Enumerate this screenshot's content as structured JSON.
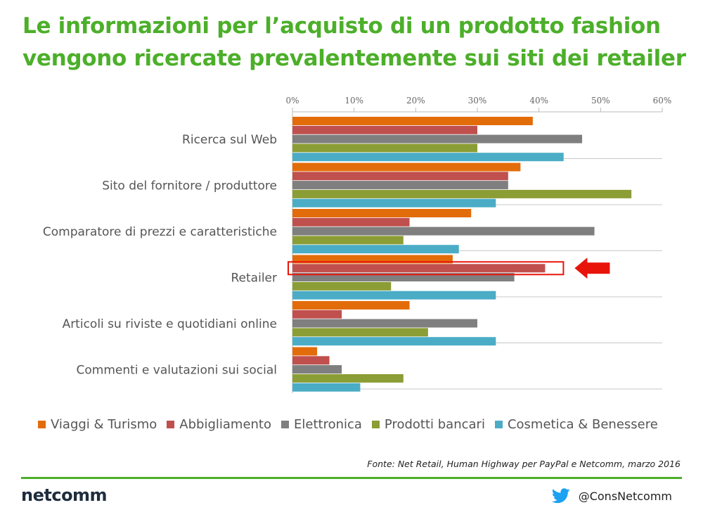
{
  "header": {
    "title_line1": "Le informazioni per l’acquisto di un prodotto fashion",
    "title_line2": "vengono ricercate prevalentemente sui siti dei retailer"
  },
  "chart_data": {
    "type": "bar",
    "orientation": "horizontal",
    "x_ticks": [
      "0%",
      "10%",
      "20%",
      "30%",
      "40%",
      "50%",
      "60%"
    ],
    "xlim": [
      0,
      60
    ],
    "x_axis_position": "top",
    "grid": "horizontal separators between categories",
    "legend_position": "bottom",
    "categories": [
      "Ricerca sul Web",
      "Sito del fornitore / produttore",
      "Comparatore di prezzi e caratteristiche",
      "Retailer",
      "Articoli su riviste e quotidiani online",
      "Commenti e valutazioni sui social"
    ],
    "series": [
      {
        "name": "Viaggi & Turismo",
        "color": "#e36c0a",
        "values": [
          39,
          37,
          29,
          26,
          19,
          4
        ]
      },
      {
        "name": "Abbigliamento",
        "color": "#c0504d",
        "values": [
          30,
          35,
          19,
          41,
          8,
          6
        ]
      },
      {
        "name": "Elettronica",
        "color": "#7f7f7f",
        "values": [
          47,
          35,
          49,
          36,
          30,
          8
        ]
      },
      {
        "name": "Prodotti bancari",
        "color": "#8b9d35",
        "values": [
          30,
          55,
          18,
          16,
          22,
          18
        ]
      },
      {
        "name": "Cosmetica & Benessere",
        "color": "#4bacc6",
        "values": [
          44,
          33,
          27,
          33,
          33,
          11
        ]
      }
    ],
    "highlight": {
      "category": "Retailer",
      "series": "Abbigliamento",
      "marker": "red-box-and-arrow",
      "color": "#e8140a"
    }
  },
  "footer": {
    "source": "Fonte: Net Retail, Human Highway per PayPal e Netcomm, marzo 2016",
    "logo_text": "netcomm",
    "twitter_handle": "@ConsNetcomm"
  }
}
